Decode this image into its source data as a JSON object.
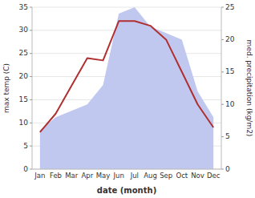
{
  "chart_data": {
    "type": "line",
    "categories": [
      "Jan",
      "Feb",
      "Mar",
      "Apr",
      "May",
      "Jun",
      "Jul",
      "Aug",
      "Sep",
      "Oct",
      "Nov",
      "Dec"
    ],
    "series": [
      {
        "type": "area",
        "color": "#c0c8f0",
        "axis": "y2",
        "values": [
          6,
          8,
          9,
          10,
          13,
          24,
          25,
          22,
          21,
          20,
          12,
          8
        ]
      },
      {
        "type": "line",
        "color": "#b03030",
        "values": [
          8,
          12,
          18,
          24,
          23.5,
          32,
          32,
          31,
          28,
          21,
          14,
          9
        ]
      }
    ],
    "xlabel": "date (month)",
    "ylabel": "max temp (C)",
    "y2label": "med. precipitation (kg/m2)",
    "ylim": [
      0,
      35
    ],
    "yticks": [
      0,
      5,
      10,
      15,
      20,
      25,
      30,
      35
    ],
    "y2lim": [
      0,
      25
    ],
    "y2ticks": [
      0,
      5,
      10,
      15,
      20,
      25
    ],
    "grid": true
  }
}
